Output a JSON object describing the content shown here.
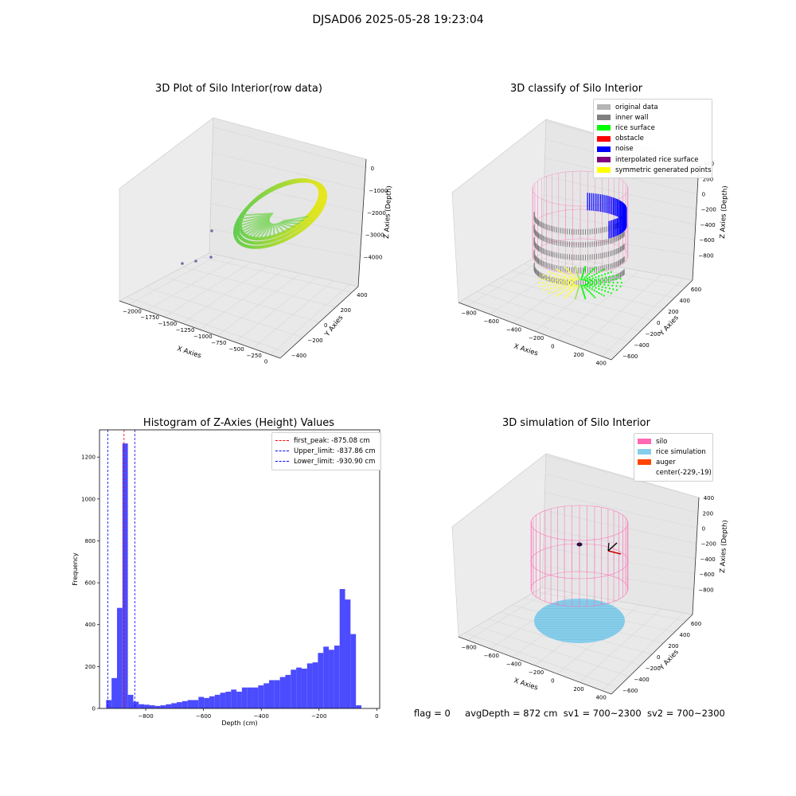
{
  "suptitle": "DJSAD06 2025-05-28 19:23:04",
  "panels": {
    "raw": {
      "title": "3D Plot of Silo Interior(row data)",
      "xlabel": "X Axies",
      "ylabel": "Y Axies",
      "zlabel": "Z Axies (Depth)",
      "xticks": [
        "−2000",
        "−1750",
        "−1500",
        "−1250",
        "−1000",
        "−750",
        "−500",
        "−250",
        "0"
      ],
      "yticks": [
        "−400",
        "−200",
        "0",
        "200",
        "400"
      ],
      "zticks": [
        "0",
        "−1000",
        "−2000",
        "−3000",
        "−4000"
      ]
    },
    "classify": {
      "title": "3D classify of Silo Interior",
      "xlabel": "X Axies",
      "ylabel": "Y Axies",
      "zlabel": "Z Axies (Depth)",
      "xticks": [
        "−800",
        "−600",
        "−400",
        "−200",
        "0",
        "200",
        "400"
      ],
      "yticks": [
        "−600",
        "−400",
        "−200",
        "0",
        "200",
        "400",
        "600"
      ],
      "zticks": [
        "400",
        "200",
        "0",
        "−200",
        "−400",
        "−600",
        "−800"
      ],
      "legend": [
        {
          "label": "original data",
          "color": "#b4b4b4"
        },
        {
          "label": "inner wall",
          "color": "#808080"
        },
        {
          "label": "rice surface",
          "color": "#00ff00"
        },
        {
          "label": "obstacle",
          "color": "#ff0000"
        },
        {
          "label": "noise",
          "color": "#0000ff"
        },
        {
          "label": "interpolated rice surface",
          "color": "#800080"
        },
        {
          "label": "symmetric generated points",
          "color": "#ffff00"
        }
      ]
    },
    "simulation": {
      "title": "3D simulation of Silo Interior",
      "xlabel": "X Axies",
      "ylabel": "Y Axies",
      "zlabel": "Z Axies (Depth)",
      "xticks": [
        "−800",
        "−600",
        "−400",
        "−200",
        "0",
        "200",
        "400"
      ],
      "yticks": [
        "−600",
        "−400",
        "−200",
        "0",
        "200",
        "400",
        "600"
      ],
      "zticks": [
        "400",
        "200",
        "0",
        "−200",
        "−400",
        "−600",
        "−800"
      ],
      "legend": [
        {
          "label": "silo",
          "color": "#ff69b4"
        },
        {
          "label": "rice simulation",
          "color": "#87ceeb"
        },
        {
          "label": "auger",
          "color": "#ff4500"
        },
        {
          "label": "center(-229,-19)",
          "color": ""
        }
      ]
    }
  },
  "chart_data": [
    {
      "type": "bar",
      "title": "Histogram of Z-Axies (Height) Values",
      "xlabel": "Depth (cm)",
      "ylabel": "Frequency",
      "bar_color": "#4b4bff",
      "xlim": [
        -960,
        10
      ],
      "ylim": [
        0,
        1330
      ],
      "xticks": [
        -800,
        -600,
        -400,
        -200,
        0
      ],
      "xtick_labels": [
        "−800",
        "−600",
        "−400",
        "−200",
        "0"
      ],
      "yticks": [
        0,
        200,
        400,
        600,
        800,
        1000,
        1200
      ],
      "yticks_labels": [
        "0",
        "200",
        "400",
        "600",
        "800",
        "1000",
        "1200"
      ],
      "bin_edges_start": -937,
      "bin_width": 18.8,
      "values": [
        40,
        145,
        480,
        1265,
        65,
        32,
        20,
        18,
        15,
        12,
        15,
        20,
        25,
        30,
        35,
        40,
        40,
        55,
        50,
        58,
        65,
        75,
        80,
        90,
        80,
        100,
        100,
        100,
        110,
        120,
        135,
        135,
        150,
        160,
        185,
        195,
        190,
        215,
        220,
        265,
        295,
        280,
        300,
        570,
        520,
        355,
        15
      ],
      "vlines": [
        {
          "x": -875.08,
          "label": "first_peak: -875.08 cm",
          "color": "#ff0000"
        },
        {
          "x": -837.86,
          "label": "Upper_limit: -837.86 cm",
          "color": "#0000ff"
        },
        {
          "x": -930.9,
          "label": "Lower_limit: -930.90 cm",
          "color": "#0000ff"
        }
      ],
      "legend_position": "top-right"
    }
  ],
  "status": {
    "flag": "flag = 0",
    "avg": "avgDepth = 872 cm",
    "sv1": "sv1 = 700~2300",
    "sv2": "sv2 = 700~2300"
  }
}
